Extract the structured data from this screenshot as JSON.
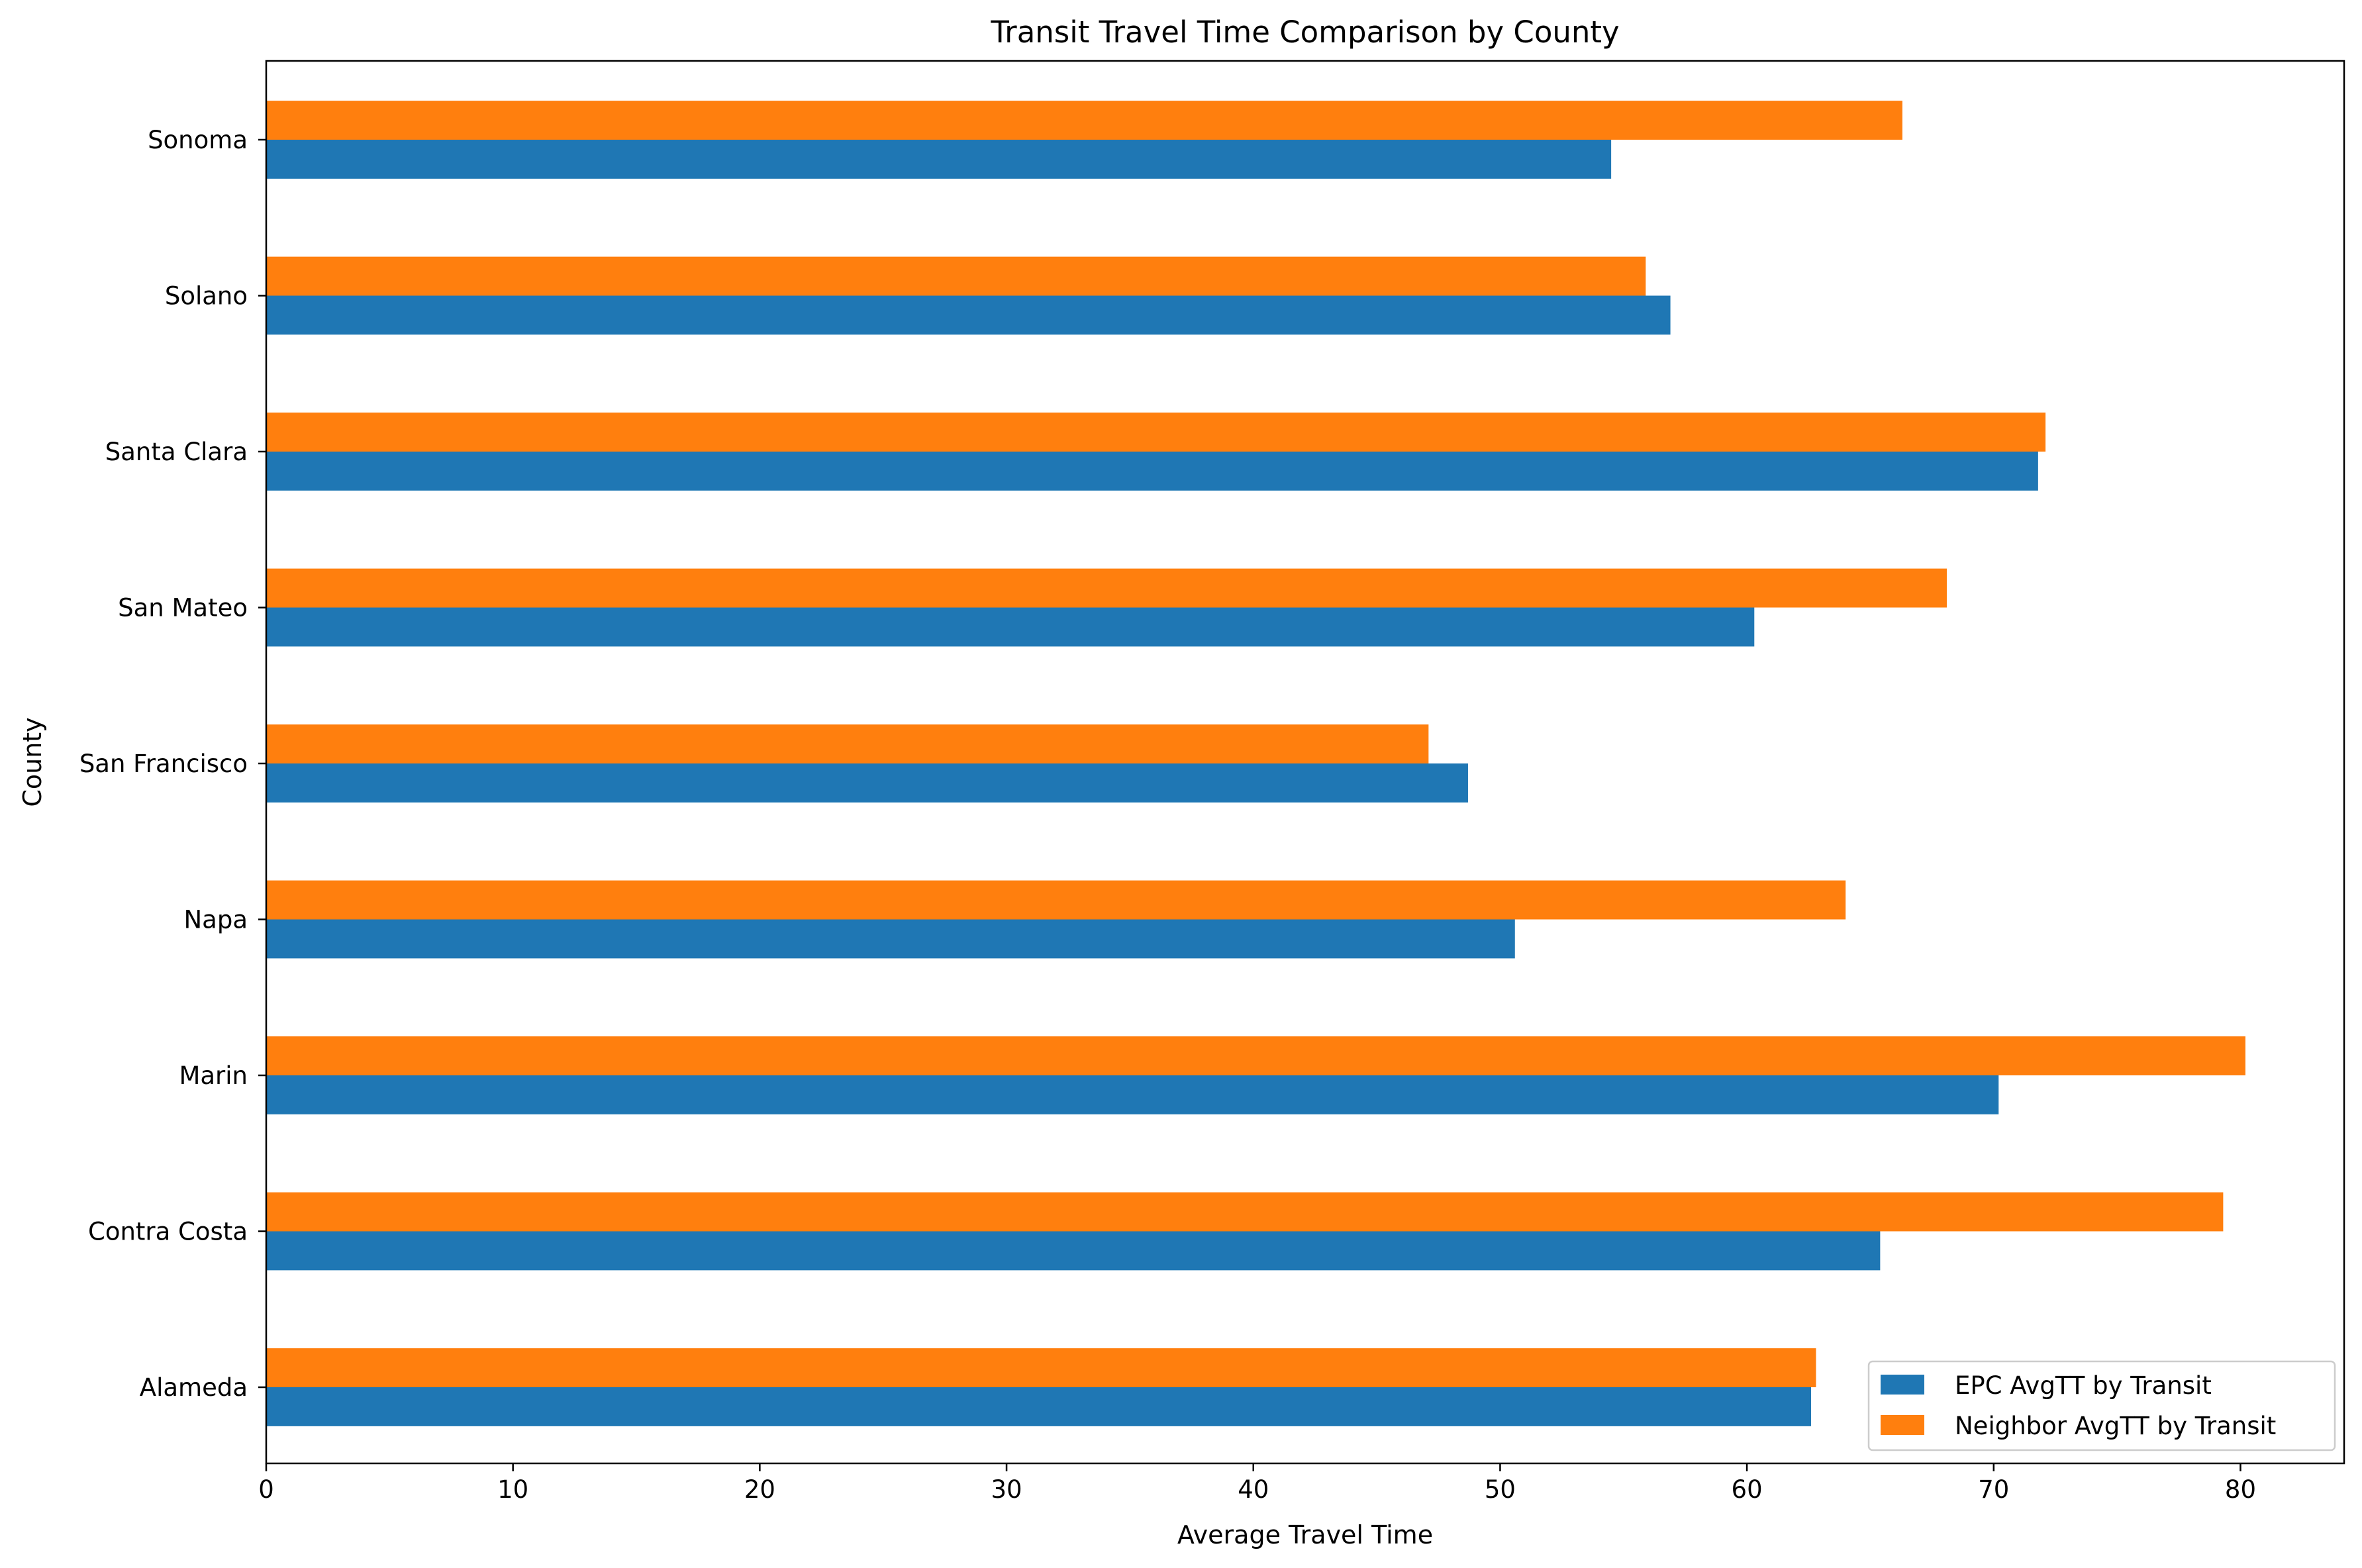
{
  "chart_data": {
    "type": "bar",
    "orientation": "horizontal",
    "title": "Transit Travel Time Comparison by County",
    "xlabel": "Average Travel Time",
    "ylabel": "County",
    "categories": [
      "Alameda",
      "Contra Costa",
      "Marin",
      "Napa",
      "San Francisco",
      "San Mateo",
      "Santa Clara",
      "Solano",
      "Sonoma"
    ],
    "series": [
      {
        "name": "EPC AvgTT by Transit",
        "color": "#1f77b4",
        "values": [
          62.6,
          65.4,
          70.2,
          50.6,
          48.7,
          60.3,
          71.8,
          56.9,
          54.5
        ]
      },
      {
        "name": "Neighbor AvgTT by Transit",
        "color": "#ff7f0e",
        "values": [
          62.8,
          79.3,
          80.2,
          64.0,
          47.1,
          68.1,
          72.1,
          55.9,
          66.3
        ]
      }
    ],
    "xlim": [
      0,
      84.2
    ],
    "xticks": [
      "0",
      "10",
      "20",
      "30",
      "40",
      "50",
      "60",
      "70",
      "80"
    ],
    "grid": false,
    "legend_position": "lower-right"
  }
}
